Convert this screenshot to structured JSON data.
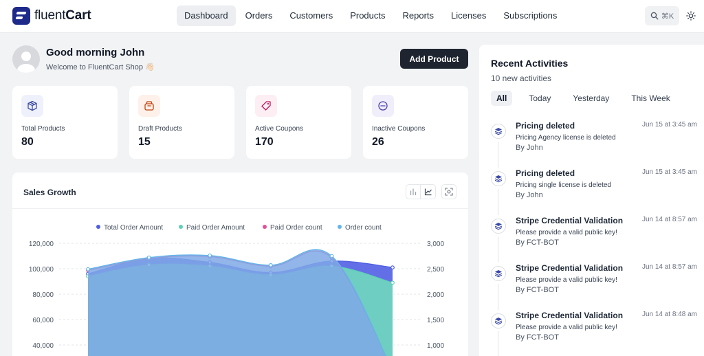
{
  "app": {
    "logo_text_light": "fluent",
    "logo_text_bold": "Cart"
  },
  "nav": {
    "items": [
      "Dashboard",
      "Orders",
      "Customers",
      "Products",
      "Reports",
      "Licenses",
      "Subscriptions"
    ],
    "active": "Dashboard"
  },
  "search": {
    "shortcut": "⌘K"
  },
  "greeting": {
    "title": "Good morning John",
    "subtitle": "Welcome to FluentCart Shop 👋🏻"
  },
  "actions": {
    "add_product": "Add Product"
  },
  "stats": [
    {
      "label": "Total Products",
      "value": "80",
      "icon": "box-icon",
      "bg": "#eef1fb",
      "color": "#3b4aa8"
    },
    {
      "label": "Draft Products",
      "value": "15",
      "icon": "archive-icon",
      "bg": "#fdf1ea",
      "color": "#c2410c"
    },
    {
      "label": "Active Coupons",
      "value": "170",
      "icon": "tag-icon",
      "bg": "#fdeef3",
      "color": "#be185d"
    },
    {
      "label": "Inactive Coupons",
      "value": "26",
      "icon": "minus-circle-icon",
      "bg": "#efeefa",
      "color": "#4c3fa8"
    }
  ],
  "sales": {
    "title": "Sales Growth"
  },
  "chart_data": {
    "type": "area",
    "legend": [
      "Total Order Amount",
      "Paid Order Amount",
      "Paid Order count",
      "Order count"
    ],
    "legend_colors": [
      "#4f5fe0",
      "#5fd0b5",
      "#e0529a",
      "#62b6ea"
    ],
    "y_left": {
      "ticks": [
        "120,000",
        "100,000",
        "80,000",
        "60,000",
        "40,000"
      ],
      "range": [
        40000,
        120000
      ]
    },
    "y_right": {
      "ticks": [
        "3,000",
        "2,500",
        "2,000",
        "1,500",
        "1,000"
      ],
      "range": [
        1000,
        3000
      ]
    },
    "series": [
      {
        "name": "Total Order Amount",
        "axis": "left",
        "values": [
          96000,
          108000,
          105000,
          97000,
          106000,
          101000
        ]
      },
      {
        "name": "Paid Order Amount",
        "axis": "left",
        "values": [
          94000,
          103000,
          102000,
          95000,
          102000,
          89000
        ]
      },
      {
        "name": "Paid Order count",
        "axis": "right",
        "values": [
          2470,
          2700,
          2740,
          2550,
          2720,
          500
        ]
      },
      {
        "name": "Order count",
        "axis": "right",
        "values": [
          2490,
          2720,
          2760,
          2570,
          2750,
          500
        ]
      }
    ]
  },
  "recent": {
    "title": "Recent Activities",
    "count": "10 new activities",
    "filters": [
      "All",
      "Today",
      "Yesterday",
      "This Week"
    ],
    "active_filter": "All",
    "items": [
      {
        "title": "Pricing deleted",
        "desc": "Pricing Agency license is deleted",
        "by": "By John",
        "time": "Jun 15 at 3:45 am"
      },
      {
        "title": "Pricing deleted",
        "desc": "Pricing single license is deleted",
        "by": "By John",
        "time": "Jun 15 at 3:45 am"
      },
      {
        "title": "Stripe Credential Validation",
        "desc": "Please provide a valid public key!",
        "by": "By FCT-BOT",
        "time": "Jun 14 at 8:57 am"
      },
      {
        "title": "Stripe Credential Validation",
        "desc": "Please provide a valid public key!",
        "by": "By FCT-BOT",
        "time": "Jun 14 at 8:57 am"
      },
      {
        "title": "Stripe Credential Validation",
        "desc": "Please provide a valid public key!",
        "by": "By FCT-BOT",
        "time": "Jun 14 at 8:48 am"
      }
    ]
  }
}
